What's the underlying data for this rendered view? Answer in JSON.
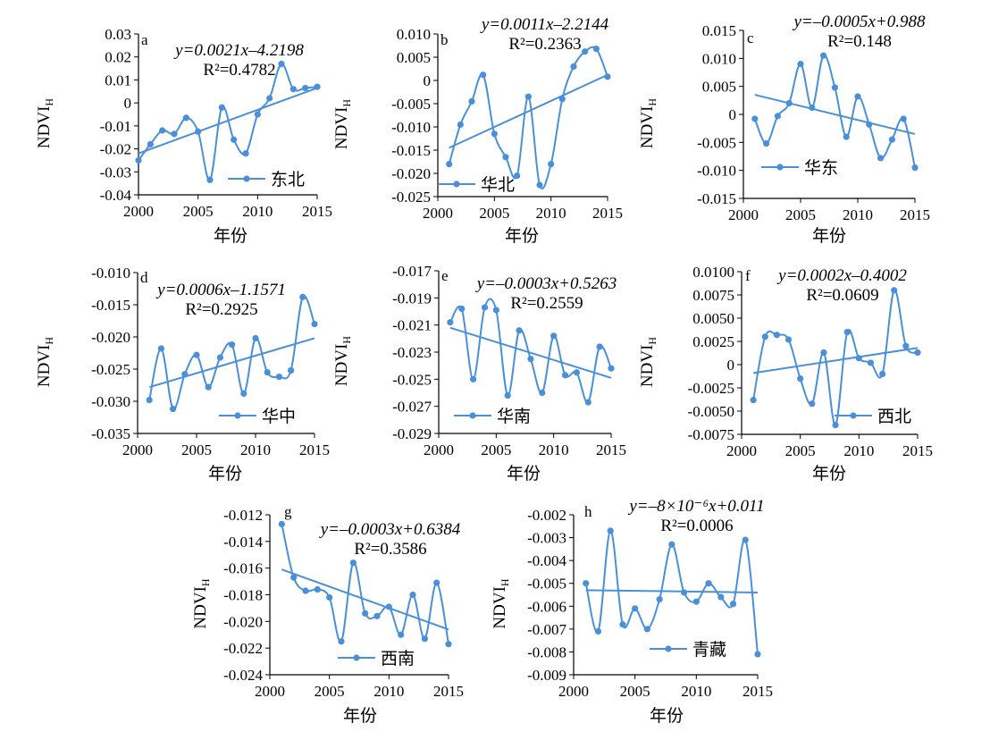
{
  "colors": {
    "series": "#4a90d9",
    "axis": "#000000"
  },
  "chart_data": [
    {
      "type": "line",
      "panel_label": "a",
      "legend": "东北",
      "xlabel": "年份",
      "ylabel": "NDVI",
      "ylabel_sub": "H",
      "xlim": [
        2000,
        2015
      ],
      "xticks": [
        "2000",
        "2005",
        "2010",
        "2015"
      ],
      "ylim": [
        -0.04,
        0.03
      ],
      "yticks": [
        "0.03",
        "0.02",
        "0.01",
        "0",
        "-0.01",
        "-0.02",
        "-0.03",
        "-0.04"
      ],
      "x": [
        2000,
        2001,
        2002,
        2003,
        2004,
        2005,
        2006,
        2007,
        2008,
        2009,
        2010,
        2011,
        2012,
        2013,
        2014,
        2015
      ],
      "values": [
        -0.025,
        -0.018,
        -0.012,
        -0.0135,
        -0.0065,
        -0.0125,
        -0.0335,
        -0.002,
        -0.016,
        -0.022,
        -0.005,
        0.002,
        0.017,
        0.006,
        0.0065,
        0.007
      ],
      "trend": {
        "start": -0.022,
        "end": 0.0065
      },
      "eq_line1": "y=0.0021x–4.2198",
      "eq_line2": "R²=0.4782"
    },
    {
      "type": "line",
      "panel_label": "b",
      "legend": "华北",
      "xlabel": "年份",
      "ylabel": "NDVI",
      "ylabel_sub": "H",
      "xlim": [
        2000,
        2015
      ],
      "xticks": [
        "2000",
        "2005",
        "2010",
        "2015"
      ],
      "ylim": [
        -0.025,
        0.01
      ],
      "yticks": [
        "0.010",
        "0.005",
        "0",
        "-0.005",
        "-0.010",
        "-0.015",
        "-0.020",
        "-0.025"
      ],
      "x": [
        2001,
        2002,
        2003,
        2004,
        2005,
        2006,
        2007,
        2008,
        2009,
        2010,
        2011,
        2012,
        2013,
        2014,
        2015
      ],
      "values": [
        -0.018,
        -0.0095,
        -0.0045,
        0.0012,
        -0.0115,
        -0.0165,
        -0.0205,
        -0.0035,
        -0.0225,
        -0.018,
        -0.004,
        0.003,
        0.0062,
        0.0068,
        0.0008
      ],
      "trend": {
        "start": -0.0145,
        "end": 0.0012
      },
      "eq_line1": "y=0.0011x–2.2144",
      "eq_line2": "R²=0.2363"
    },
    {
      "type": "line",
      "panel_label": "c",
      "legend": "华东",
      "xlabel": "年份",
      "ylabel": "NDVI",
      "ylabel_sub": "H",
      "xlim": [
        2000,
        2015
      ],
      "xticks": [
        "2000",
        "2005",
        "2010",
        "2015"
      ],
      "ylim": [
        -0.015,
        0.015
      ],
      "yticks": [
        "0.015",
        "0.010",
        "0.005",
        "0",
        "-0.005",
        "-0.010",
        "-0.015"
      ],
      "x": [
        2001,
        2002,
        2003,
        2004,
        2005,
        2006,
        2007,
        2008,
        2009,
        2010,
        2011,
        2012,
        2013,
        2014,
        2015
      ],
      "values": [
        -0.0008,
        -0.0052,
        -0.0003,
        0.002,
        0.009,
        0.0012,
        0.0105,
        0.0048,
        -0.004,
        0.0032,
        -0.0018,
        -0.0078,
        -0.0045,
        -0.0008,
        -0.0095
      ],
      "trend": {
        "start": 0.0035,
        "end": -0.0035
      },
      "eq_line1": "y=–0.0005x+0.988",
      "eq_line2": "R²=0.148"
    },
    {
      "type": "line",
      "panel_label": "d",
      "legend": "华中",
      "xlabel": "年份",
      "ylabel": "NDVI",
      "ylabel_sub": "H",
      "xlim": [
        2000,
        2015
      ],
      "xticks": [
        "2000",
        "2005",
        "2010",
        "2015"
      ],
      "ylim": [
        -0.035,
        -0.01
      ],
      "yticks": [
        "-0.010",
        "-0.015",
        "-0.020",
        "-0.025",
        "-0.030",
        "-0.035"
      ],
      "x": [
        2001,
        2002,
        2003,
        2004,
        2005,
        2006,
        2007,
        2008,
        2009,
        2010,
        2011,
        2012,
        2013,
        2014,
        2015
      ],
      "values": [
        -0.0298,
        -0.0218,
        -0.0312,
        -0.0258,
        -0.0228,
        -0.0278,
        -0.0232,
        -0.0212,
        -0.0288,
        -0.0202,
        -0.0255,
        -0.0262,
        -0.0252,
        -0.0138,
        -0.018
      ],
      "trend": {
        "start": -0.0278,
        "end": -0.0202
      },
      "eq_line1": "y=0.0006x–1.1571",
      "eq_line2": "R²=0.2925"
    },
    {
      "type": "line",
      "panel_label": "e",
      "legend": "华南",
      "xlabel": "年份",
      "ylabel": "NDVI",
      "ylabel_sub": "H",
      "xlim": [
        2000,
        2015
      ],
      "xticks": [
        "2000",
        "2005",
        "2010",
        "2015"
      ],
      "ylim": [
        -0.029,
        -0.017
      ],
      "yticks": [
        "-0.017",
        "-0.019",
        "-0.021",
        "-0.023",
        "-0.025",
        "-0.027",
        "-0.029"
      ],
      "x": [
        2001,
        2002,
        2003,
        2004,
        2005,
        2006,
        2007,
        2008,
        2009,
        2010,
        2011,
        2012,
        2013,
        2014,
        2015
      ],
      "values": [
        -0.0208,
        -0.0198,
        -0.025,
        -0.0197,
        -0.0199,
        -0.0262,
        -0.0214,
        -0.0235,
        -0.026,
        -0.0218,
        -0.0247,
        -0.0245,
        -0.0267,
        -0.0226,
        -0.0242
      ],
      "trend": {
        "start": -0.0212,
        "end": -0.0249
      },
      "eq_line1": "y=–0.0003x+0.5263",
      "eq_line2": "R²=0.2559"
    },
    {
      "type": "line",
      "panel_label": "f",
      "legend": "西北",
      "xlabel": "年份",
      "ylabel": "NDVI",
      "ylabel_sub": "H",
      "xlim": [
        2000,
        2015
      ],
      "xticks": [
        "2000",
        "2005",
        "2010",
        "2015"
      ],
      "ylim": [
        -0.0075,
        0.01
      ],
      "yticks": [
        "0.0100",
        "0.0075",
        "0.0050",
        "0.0025",
        "0",
        "-0.0025",
        "-0.0050",
        "-0.0075"
      ],
      "x": [
        2001,
        2002,
        2003,
        2004,
        2005,
        2006,
        2007,
        2008,
        2009,
        2010,
        2011,
        2012,
        2013,
        2014,
        2015
      ],
      "values": [
        -0.0038,
        0.003,
        0.0032,
        0.0027,
        -0.0015,
        -0.0042,
        0.0013,
        -0.0065,
        0.0035,
        0.0007,
        0.0002,
        -0.001,
        0.008,
        0.002,
        0.0013
      ],
      "trend": {
        "start": -0.0009,
        "end": 0.0018
      },
      "eq_line1": "y=0.0002x–0.4002",
      "eq_line2": "R²=0.0609"
    },
    {
      "type": "line",
      "panel_label": "g",
      "legend": "西南",
      "xlabel": "年份",
      "ylabel": "NDVI",
      "ylabel_sub": "H",
      "xlim": [
        2000,
        2015
      ],
      "xticks": [
        "2000",
        "2005",
        "2010",
        "2015"
      ],
      "ylim": [
        -0.024,
        -0.012
      ],
      "yticks": [
        "-0.012",
        "-0.014",
        "-0.016",
        "-0.018",
        "-0.020",
        "-0.022",
        "-0.024"
      ],
      "x": [
        2001,
        2002,
        2003,
        2004,
        2005,
        2006,
        2007,
        2008,
        2009,
        2010,
        2011,
        2012,
        2013,
        2014,
        2015
      ],
      "values": [
        -0.0127,
        -0.0167,
        -0.0177,
        -0.0176,
        -0.0182,
        -0.0215,
        -0.0156,
        -0.0194,
        -0.0196,
        -0.0189,
        -0.021,
        -0.018,
        -0.0213,
        -0.0171,
        -0.0217
      ],
      "trend": {
        "start": -0.0161,
        "end": -0.0206
      },
      "eq_line1": "y=–0.0003x+0.6384",
      "eq_line2": "R²=0.3586"
    },
    {
      "type": "line",
      "panel_label": "h",
      "legend": "青藏",
      "xlabel": "年份",
      "ylabel": "NDVI",
      "ylabel_sub": "H",
      "xlim": [
        2000,
        2015
      ],
      "xticks": [
        "2000",
        "2005",
        "2010",
        "2015"
      ],
      "ylim": [
        -0.009,
        -0.002
      ],
      "yticks": [
        "-0.002",
        "-0.003",
        "-0.004",
        "-0.005",
        "-0.006",
        "-0.007",
        "-0.008",
        "-0.009"
      ],
      "x": [
        2001,
        2002,
        2003,
        2004,
        2005,
        2006,
        2007,
        2008,
        2009,
        2010,
        2011,
        2012,
        2013,
        2014,
        2015
      ],
      "values": [
        -0.005,
        -0.0071,
        -0.0027,
        -0.0068,
        -0.0061,
        -0.007,
        -0.0057,
        -0.0033,
        -0.0054,
        -0.0058,
        -0.005,
        -0.0056,
        -0.0059,
        -0.0031,
        -0.0081
      ],
      "trend": {
        "start": -0.0053,
        "end": -0.0054
      },
      "eq_line1": "y=–8×10⁻⁶x+0.011",
      "eq_line2": "R²=0.0006"
    }
  ]
}
